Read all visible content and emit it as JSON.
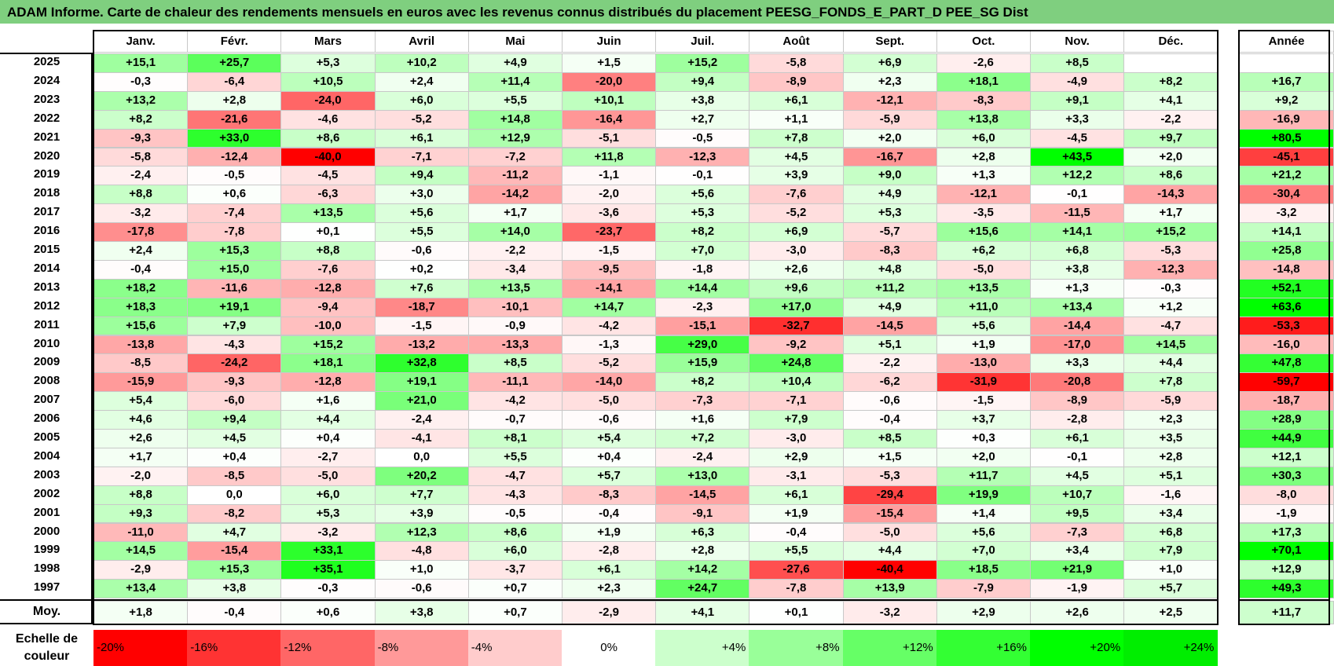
{
  "title": "ADAM Informe. Carte de chaleur des rendements mensuels en euros avec les revenus connus distribués du placement PEESG_FONDS_E_PART_D PEE_SG Dist",
  "chart_data": {
    "type": "heatmap",
    "months": [
      "Janv.",
      "Févr.",
      "Mars",
      "Avril",
      "Mai",
      "Juin",
      "Juil.",
      "Août",
      "Sept.",
      "Oct.",
      "Nov.",
      "Déc."
    ],
    "annual_header": "Année",
    "rows": [
      {
        "year": "2025",
        "values": [
          "+15,1",
          "+25,7",
          "+5,3",
          "+10,2",
          "+4,9",
          "+1,5",
          "+15,2",
          "-5,8",
          "+6,9",
          "-2,6",
          "+8,5",
          ""
        ],
        "annual": ""
      },
      {
        "year": "2024",
        "values": [
          "-0,3",
          "-6,4",
          "+10,5",
          "+2,4",
          "+11,4",
          "-20,0",
          "+9,4",
          "-8,9",
          "+2,3",
          "+18,1",
          "-4,9",
          "+8,2"
        ],
        "annual": "+16,7"
      },
      {
        "year": "2023",
        "values": [
          "+13,2",
          "+2,8",
          "-24,0",
          "+6,0",
          "+5,5",
          "+10,1",
          "+3,8",
          "+6,1",
          "-12,1",
          "-8,3",
          "+9,1",
          "+4,1"
        ],
        "annual": "+9,2"
      },
      {
        "year": "2022",
        "values": [
          "+8,2",
          "-21,6",
          "-4,6",
          "-5,2",
          "+14,8",
          "-16,4",
          "+2,7",
          "+1,1",
          "-5,9",
          "+13,8",
          "+3,3",
          "-2,2"
        ],
        "annual": "-16,9"
      },
      {
        "year": "2021",
        "values": [
          "-9,3",
          "+33,0",
          "+8,6",
          "+6,1",
          "+12,9",
          "-5,1",
          "-0,5",
          "+7,8",
          "+2,0",
          "+6,0",
          "-4,5",
          "+9,7"
        ],
        "annual": "+80,5"
      },
      {
        "year": "2020",
        "values": [
          "-5,8",
          "-12,4",
          "-40,0",
          "-7,1",
          "-7,2",
          "+11,8",
          "-12,3",
          "+4,5",
          "-16,7",
          "+2,8",
          "+43,5",
          "+2,0"
        ],
        "annual": "-45,1"
      },
      {
        "year": "2019",
        "values": [
          "-2,4",
          "-0,5",
          "-4,5",
          "+9,4",
          "-11,2",
          "-1,1",
          "-0,1",
          "+3,9",
          "+9,0",
          "+1,3",
          "+12,2",
          "+8,6"
        ],
        "annual": "+21,2"
      },
      {
        "year": "2018",
        "values": [
          "+8,8",
          "+0,6",
          "-6,3",
          "+3,0",
          "-14,2",
          "-2,0",
          "+5,6",
          "-7,6",
          "+4,9",
          "-12,1",
          "-0,1",
          "-14,3"
        ],
        "annual": "-30,4"
      },
      {
        "year": "2017",
        "values": [
          "-3,2",
          "-7,4",
          "+13,5",
          "+5,6",
          "+1,7",
          "-3,6",
          "+5,3",
          "-5,2",
          "+5,3",
          "-3,5",
          "-11,5",
          "+1,7"
        ],
        "annual": "-3,2"
      },
      {
        "year": "2016",
        "values": [
          "-17,8",
          "-7,8",
          "+0,1",
          "+5,5",
          "+14,0",
          "-23,7",
          "+8,2",
          "+6,9",
          "-5,7",
          "+15,6",
          "+14,1",
          "+15,2"
        ],
        "annual": "+14,1"
      },
      {
        "year": "2015",
        "values": [
          "+2,4",
          "+15,3",
          "+8,8",
          "-0,6",
          "-2,2",
          "-1,5",
          "+7,0",
          "-3,0",
          "-8,3",
          "+6,2",
          "+6,8",
          "-5,3"
        ],
        "annual": "+25,8"
      },
      {
        "year": "2014",
        "values": [
          "-0,4",
          "+15,0",
          "-7,6",
          "+0,2",
          "-3,4",
          "-9,5",
          "-1,8",
          "+2,6",
          "+4,8",
          "-5,0",
          "+3,8",
          "-12,3"
        ],
        "annual": "-14,8"
      },
      {
        "year": "2013",
        "values": [
          "+18,2",
          "-11,6",
          "-12,8",
          "+7,6",
          "+13,5",
          "-14,1",
          "+14,4",
          "+9,6",
          "+11,2",
          "+13,5",
          "+1,3",
          "-0,3"
        ],
        "annual": "+52,1"
      },
      {
        "year": "2012",
        "values": [
          "+18,3",
          "+19,1",
          "-9,4",
          "-18,7",
          "-10,1",
          "+14,7",
          "-2,3",
          "+17,0",
          "+4,9",
          "+11,0",
          "+13,4",
          "+1,2"
        ],
        "annual": "+63,6"
      },
      {
        "year": "2011",
        "values": [
          "+15,6",
          "+7,9",
          "-10,0",
          "-1,5",
          "-0,9",
          "-4,2",
          "-15,1",
          "-32,7",
          "-14,5",
          "+5,6",
          "-14,4",
          "-4,7"
        ],
        "annual": "-53,3"
      },
      {
        "year": "2010",
        "values": [
          "-13,8",
          "-4,3",
          "+15,2",
          "-13,2",
          "-13,3",
          "-1,3",
          "+29,0",
          "-9,2",
          "+5,1",
          "+1,9",
          "-17,0",
          "+14,5"
        ],
        "annual": "-16,0"
      },
      {
        "year": "2009",
        "values": [
          "-8,5",
          "-24,2",
          "+18,1",
          "+32,8",
          "+8,5",
          "-5,2",
          "+15,9",
          "+24,8",
          "-2,2",
          "-13,0",
          "+3,3",
          "+4,4"
        ],
        "annual": "+47,8"
      },
      {
        "year": "2008",
        "values": [
          "-15,9",
          "-9,3",
          "-12,8",
          "+19,1",
          "-11,1",
          "-14,0",
          "+8,2",
          "+10,4",
          "-6,2",
          "-31,9",
          "-20,8",
          "+7,8"
        ],
        "annual": "-59,7"
      },
      {
        "year": "2007",
        "values": [
          "+5,4",
          "-6,0",
          "+1,6",
          "+21,0",
          "-4,2",
          "-5,0",
          "-7,3",
          "-7,1",
          "-0,6",
          "-1,5",
          "-8,9",
          "-5,9"
        ],
        "annual": "-18,7"
      },
      {
        "year": "2006",
        "values": [
          "+4,6",
          "+9,4",
          "+4,4",
          "-2,4",
          "-0,7",
          "-0,6",
          "+1,6",
          "+7,9",
          "-0,4",
          "+3,7",
          "-2,8",
          "+2,3"
        ],
        "annual": "+28,9"
      },
      {
        "year": "2005",
        "values": [
          "+2,6",
          "+4,5",
          "+0,4",
          "-4,1",
          "+8,1",
          "+5,4",
          "+7,2",
          "-3,0",
          "+8,5",
          "+0,3",
          "+6,1",
          "+3,5"
        ],
        "annual": "+44,9"
      },
      {
        "year": "2004",
        "values": [
          "+1,7",
          "+0,4",
          "-2,7",
          "0,0",
          "+5,5",
          "+0,4",
          "-2,4",
          "+2,9",
          "+1,5",
          "+2,0",
          "-0,1",
          "+2,8"
        ],
        "annual": "+12,1"
      },
      {
        "year": "2003",
        "values": [
          "-2,0",
          "-8,5",
          "-5,0",
          "+20,2",
          "-4,7",
          "+5,7",
          "+13,0",
          "-3,1",
          "-5,3",
          "+11,7",
          "+4,5",
          "+5,1"
        ],
        "annual": "+30,3"
      },
      {
        "year": "2002",
        "values": [
          "+8,8",
          "0,0",
          "+6,0",
          "+7,7",
          "-4,3",
          "-8,3",
          "-14,5",
          "+6,1",
          "-29,4",
          "+19,9",
          "+10,7",
          "-1,6"
        ],
        "annual": "-8,0"
      },
      {
        "year": "2001",
        "values": [
          "+9,3",
          "-8,2",
          "+5,3",
          "+3,9",
          "-0,5",
          "-0,4",
          "-9,1",
          "+1,9",
          "-15,4",
          "+1,4",
          "+9,5",
          "+3,4"
        ],
        "annual": "-1,9"
      },
      {
        "year": "2000",
        "values": [
          "-11,0",
          "+4,7",
          "-3,2",
          "+12,3",
          "+8,6",
          "+1,9",
          "+6,3",
          "-0,4",
          "-5,0",
          "+5,6",
          "-7,3",
          "+6,8"
        ],
        "annual": "+17,3"
      },
      {
        "year": "1999",
        "values": [
          "+14,5",
          "-15,4",
          "+33,1",
          "-4,8",
          "+6,0",
          "-2,8",
          "+2,8",
          "+5,5",
          "+4,4",
          "+7,0",
          "+3,4",
          "+7,9"
        ],
        "annual": "+70,1"
      },
      {
        "year": "1998",
        "values": [
          "-2,9",
          "+15,3",
          "+35,1",
          "+1,0",
          "-3,7",
          "+6,1",
          "+14,2",
          "-27,6",
          "-40,4",
          "+18,5",
          "+21,9",
          "+1,0"
        ],
        "annual": "+12,9"
      },
      {
        "year": "1997",
        "values": [
          "+13,4",
          "+3,8",
          "-0,3",
          "-0,6",
          "+0,7",
          "+2,3",
          "+24,7",
          "-7,8",
          "+13,9",
          "-7,9",
          "-1,9",
          "+5,7"
        ],
        "annual": "+49,3"
      }
    ],
    "average": {
      "label": "Moy.",
      "values": [
        "+1,8",
        "-0,4",
        "+0,6",
        "+3,8",
        "+0,7",
        "-2,9",
        "+4,1",
        "+0,1",
        "-3,2",
        "+2,9",
        "+2,6",
        "+2,5"
      ],
      "annual": "+11,7"
    },
    "scale": {
      "label": "Echelle de couleur",
      "stops": [
        "-20%",
        "-16%",
        "-12%",
        "-8%",
        "-4%",
        "0%",
        "+4%",
        "+8%",
        "+12%",
        "+16%",
        "+20%",
        "+24%"
      ],
      "colors": [
        "#ff0000",
        "#ff3333",
        "#ff6666",
        "#ff9999",
        "#ffcccc",
        "#ffffff",
        "#ccffcc",
        "#99ff99",
        "#66ff66",
        "#33ff33",
        "#00ff00",
        "#00ee00"
      ]
    },
    "colors": {
      "title_bg": "#7fcf7f",
      "negative": "#ff0000",
      "positive": "#00ff00",
      "neutral": "#ffffff"
    }
  }
}
